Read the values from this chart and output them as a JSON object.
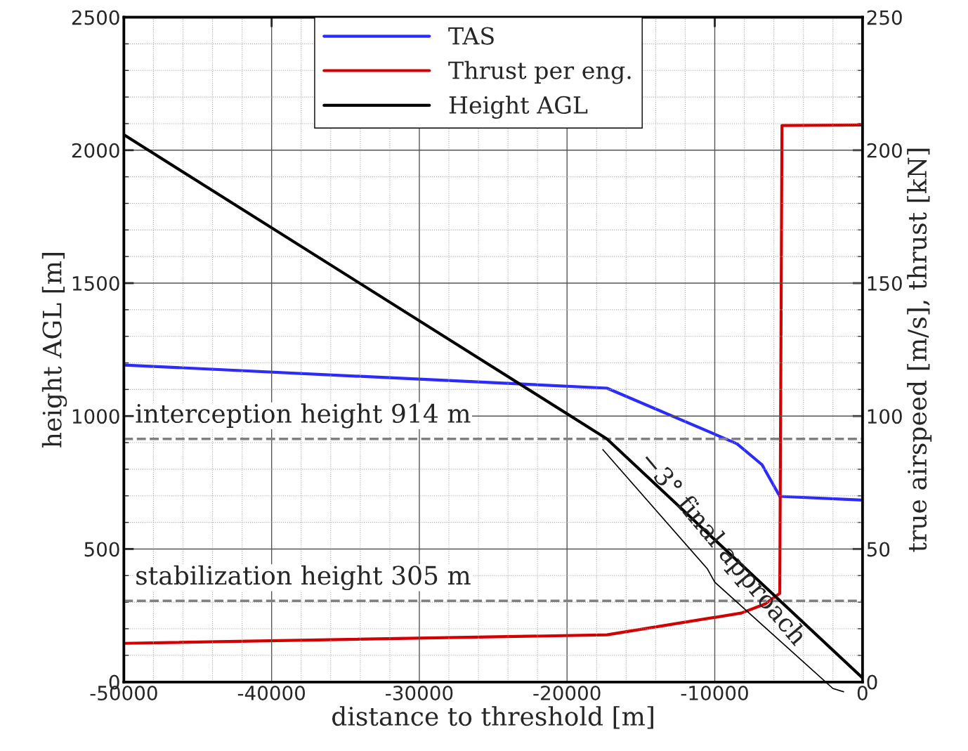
{
  "chart_data": {
    "type": "line",
    "xlabel": "distance to threshold [m]",
    "ylabel": "height AGL [m]",
    "y2label": "true airspeed [m/s], thrust [kN]",
    "xlim": [
      -50000,
      0
    ],
    "xticks": [
      -50000,
      -40000,
      -30000,
      -20000,
      -10000,
      0
    ],
    "ylim": [
      0,
      2500
    ],
    "yticks": [
      0,
      500,
      1000,
      1500,
      2000,
      2500
    ],
    "y2lim": [
      0,
      250
    ],
    "y2ticks": [
      0,
      50,
      100,
      150,
      200,
      250
    ],
    "grid": true,
    "legend": "top",
    "line_style": "solid",
    "marker": "none",
    "series": [
      {
        "name": "TAS",
        "color": "#2b2bff",
        "axis": "y2",
        "x": [
          -50000,
          -17300,
          -8500,
          -6800,
          -5600,
          0
        ],
        "values": [
          119.2,
          110.5,
          89.6,
          81.7,
          69.8,
          68.4
        ]
      },
      {
        "name": "Thrust per eng.",
        "color": "#d40000",
        "axis": "y2",
        "x": [
          -50000,
          -17300,
          -8200,
          -6600,
          -5600,
          -5450,
          0
        ],
        "values": [
          14.5,
          17.7,
          25.9,
          29.3,
          33.3,
          209.3,
          209.5
        ]
      },
      {
        "name": "Height AGL",
        "color": "#000000",
        "axis": "y",
        "x": [
          -50000,
          -17300,
          0
        ],
        "values": [
          2058,
          914,
          15
        ]
      }
    ],
    "ref_lines": [
      {
        "axis": "y",
        "value": 914,
        "label": "interception height 914 m",
        "color": "#808080",
        "line_style": "dashed"
      },
      {
        "axis": "y",
        "value": 305,
        "label": "stabilization height 305 m",
        "color": "#808080",
        "line_style": "dashed"
      }
    ],
    "annotations": [
      "−3° final approach"
    ]
  }
}
